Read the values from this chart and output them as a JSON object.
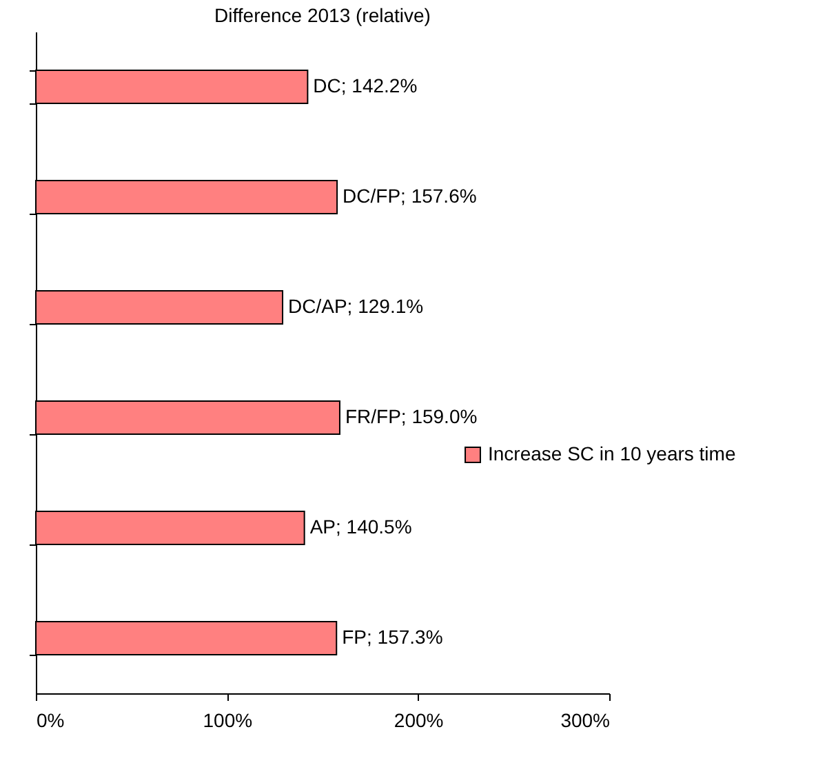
{
  "chart_data": {
    "type": "bar",
    "orientation": "horizontal",
    "title": "Difference 2013 (relative)",
    "categories": [
      null,
      null,
      null,
      null,
      null,
      null
    ],
    "series": [
      {
        "name": "Increase SC in 10 years time",
        "color": "#ff8080",
        "values": [
          142.2,
          157.6,
          129.1,
          159.0,
          140.5,
          157.3
        ],
        "value_labels": [
          "DC; 142.2%",
          "DC/FP; 157.6%",
          "DC/AP; 129.1%",
          "FR/FP; 159.0%",
          "AP; 140.5%",
          "FP; 157.3%"
        ]
      }
    ],
    "xlim": [
      0,
      300
    ],
    "xticks": [
      {
        "value": 0,
        "label": "0%"
      },
      {
        "value": 100,
        "label": "100%"
      },
      {
        "value": 200,
        "label": "200%"
      },
      {
        "value": 300,
        "label": "300%"
      }
    ],
    "tick_labels": "x",
    "grid": false,
    "legend": "right"
  }
}
